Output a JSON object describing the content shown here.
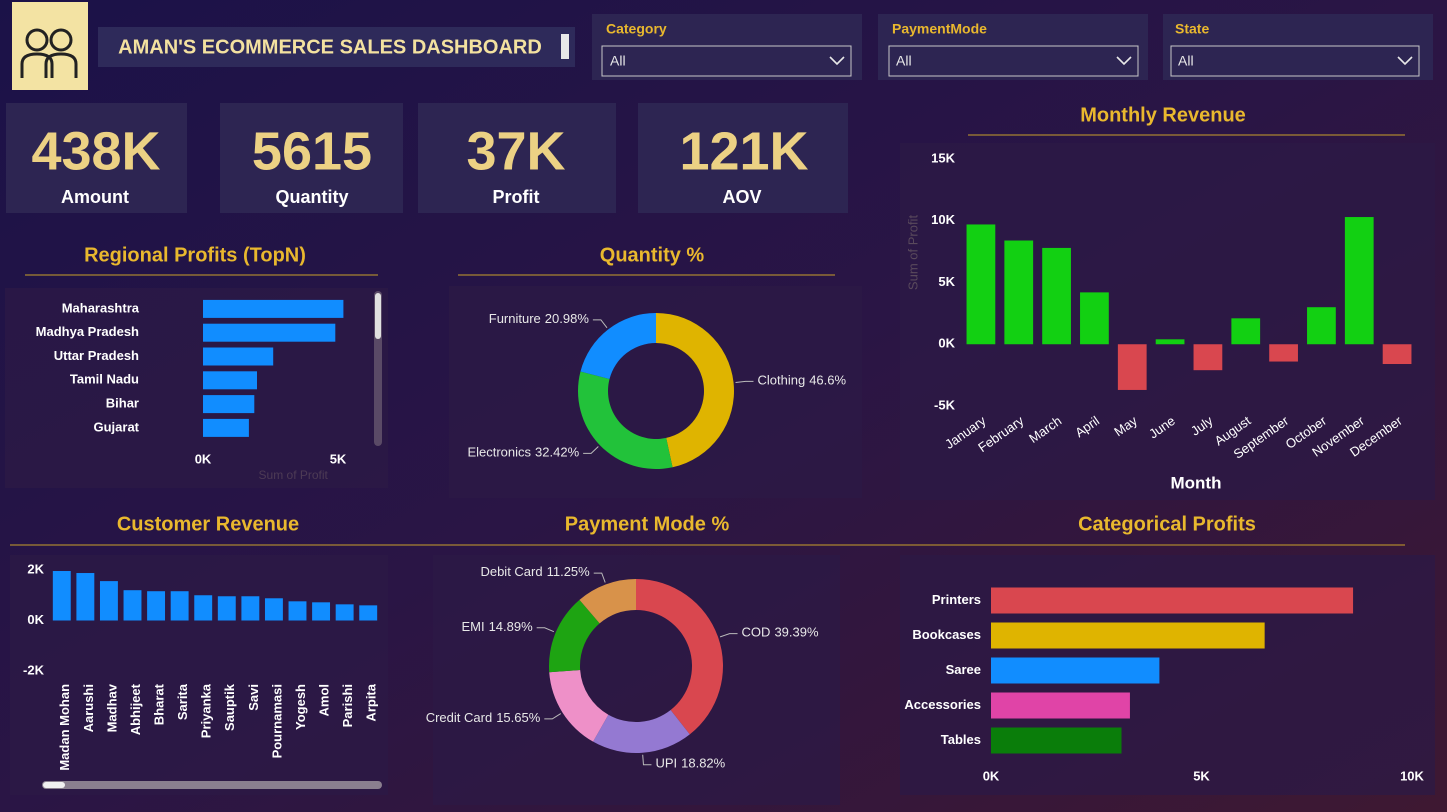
{
  "header": {
    "title": "AMAN'S ECOMMERCE SALES DASHBOARD"
  },
  "filters": [
    {
      "label": "Category",
      "value": "All"
    },
    {
      "label": "PaymentMode",
      "value": "All"
    },
    {
      "label": "State",
      "value": "All"
    }
  ],
  "kpis": [
    {
      "value": "438K",
      "label": "Amount"
    },
    {
      "value": "5615",
      "label": "Quantity"
    },
    {
      "value": "37K",
      "label": "Profit"
    },
    {
      "value": "121K",
      "label": "AOV"
    }
  ],
  "chart_data": [
    {
      "type": "hbar",
      "title": "Regional Profits (TopN)",
      "xlabel": "Sum of Profit",
      "categories": [
        "Maharashtra",
        "Madhya Pradesh",
        "Uttar Pradesh",
        "Tamil Nadu",
        "Bihar",
        "Gujarat"
      ],
      "values": [
        5200,
        4900,
        2600,
        2000,
        1900,
        1700
      ],
      "color": "#118dff",
      "xlim": [
        0,
        5200
      ],
      "xticks": [
        {
          "value": 0,
          "label": "0K"
        },
        {
          "value": 5000,
          "label": "5K"
        }
      ]
    },
    {
      "type": "donut",
      "title": "Quantity %",
      "categories": [
        "Clothing",
        "Electronics",
        "Furniture"
      ],
      "values": [
        46.6,
        32.42,
        20.98
      ],
      "value_labels": [
        "46.6%",
        "32.42%",
        "20.98%"
      ],
      "colors": [
        "#dfb400",
        "#22c23a",
        "#118dff"
      ]
    },
    {
      "type": "bar",
      "title": "Monthly Revenue",
      "xlabel": "Month",
      "ylabel": "Sum of Profit",
      "categories": [
        "January",
        "February",
        "March",
        "April",
        "May",
        "June",
        "July",
        "August",
        "September",
        "October",
        "November",
        "December"
      ],
      "values": [
        9700,
        8400,
        7800,
        4200,
        -3700,
        400,
        -2100,
        2100,
        -1400,
        3000,
        10300,
        -1600
      ],
      "color": "#12d012",
      "negative_color": "#d9474f",
      "ylim": [
        -5000,
        15000
      ],
      "yticks": [
        {
          "value": -5000,
          "label": "-5K"
        },
        {
          "value": 0,
          "label": "0K"
        },
        {
          "value": 5000,
          "label": "5K"
        },
        {
          "value": 10000,
          "label": "10K"
        },
        {
          "value": 15000,
          "label": "15K"
        }
      ]
    },
    {
      "type": "bar",
      "title": "Customer Revenue",
      "categories": [
        "Madan Mohan",
        "Aarushi",
        "Madhav",
        "Abhijeet",
        "Bharat",
        "Sarita",
        "Priyanka",
        "Sauptik",
        "Savi",
        "Pournamasi",
        "Yogesh",
        "Amol",
        "Parishi",
        "Arpita"
      ],
      "values": [
        1960,
        1880,
        1560,
        1200,
        1160,
        1160,
        1000,
        960,
        960,
        880,
        760,
        720,
        640,
        600
      ],
      "color": "#118dff",
      "ylim": [
        -2000,
        2000
      ],
      "yticks": [
        {
          "value": -2000,
          "label": "-2K"
        },
        {
          "value": 0,
          "label": "0K"
        },
        {
          "value": 2000,
          "label": "2K"
        }
      ]
    },
    {
      "type": "donut",
      "title": "Payment Mode %",
      "categories": [
        "COD",
        "UPI",
        "Credit Card",
        "EMI",
        "Debit Card"
      ],
      "values": [
        39.39,
        18.82,
        15.65,
        14.89,
        11.25
      ],
      "value_labels": [
        "39.39%",
        "18.82%",
        "15.65%",
        "14.89%",
        "11.25%"
      ],
      "colors": [
        "#d9474f",
        "#9479d2",
        "#ee90c8",
        "#1ea412",
        "#d8924a"
      ]
    },
    {
      "type": "hbar",
      "title": "Categorical Profits",
      "categories": [
        "Printers",
        "Bookcases",
        "Saree",
        "Accessories",
        "Tables"
      ],
      "values": [
        8600,
        6500,
        4000,
        3300,
        3100
      ],
      "colors": [
        "#d9474f",
        "#dfb400",
        "#118dff",
        "#e044a7",
        "#0a7d0a"
      ],
      "xlim": [
        0,
        10000
      ],
      "xticks": [
        {
          "value": 0,
          "label": "0K"
        },
        {
          "value": 5000,
          "label": "5K"
        },
        {
          "value": 10000,
          "label": "10K"
        }
      ]
    }
  ]
}
